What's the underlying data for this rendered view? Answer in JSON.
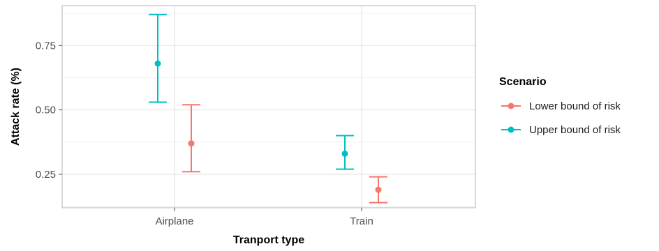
{
  "chart_data": {
    "type": "errorbar",
    "xlabel": "Tranport type",
    "ylabel": "Attack rate (%)",
    "categories": [
      "Airplane",
      "Train"
    ],
    "ylim": [
      0.12,
      0.905
    ],
    "yticks": [
      "0.25",
      "0.50",
      "0.75"
    ],
    "grid": true,
    "legend": {
      "title": "Scenario",
      "position": "right"
    },
    "series": [
      {
        "name": "Lower bound of risk",
        "color": "#F8766D",
        "points": [
          {
            "category": "Airplane",
            "value": 0.37,
            "lower": 0.26,
            "upper": 0.52
          },
          {
            "category": "Train",
            "value": 0.19,
            "lower": 0.14,
            "upper": 0.24
          }
        ]
      },
      {
        "name": "Upper bound of risk",
        "color": "#00BFC4",
        "points": [
          {
            "category": "Airplane",
            "value": 0.68,
            "lower": 0.53,
            "upper": 0.87
          },
          {
            "category": "Train",
            "value": 0.33,
            "lower": 0.27,
            "upper": 0.4
          }
        ]
      }
    ]
  }
}
